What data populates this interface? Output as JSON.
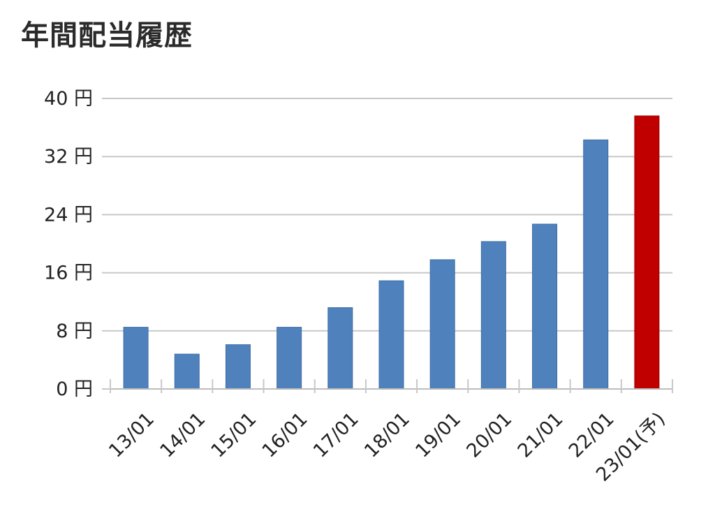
{
  "chart_data": {
    "type": "bar",
    "title": "年間配当履歴",
    "categories": [
      "13/01",
      "14/01",
      "15/01",
      "16/01",
      "17/01",
      "18/01",
      "19/01",
      "20/01",
      "21/01",
      "22/01",
      "23/01(予)"
    ],
    "series": [
      {
        "values": [
          8.5,
          4.8,
          6.1,
          8.5,
          11.2,
          14.9,
          17.8,
          20.3,
          22.7,
          34.3,
          37.6
        ]
      }
    ],
    "bar_colors": [
      "#4f81bd",
      "#4f81bd",
      "#4f81bd",
      "#4f81bd",
      "#4f81bd",
      "#4f81bd",
      "#4f81bd",
      "#4f81bd",
      "#4f81bd",
      "#4f81bd",
      "#c00000"
    ],
    "yticks": [
      0,
      8,
      16,
      24,
      32,
      40
    ],
    "ytick_labels": [
      "0 円",
      "8 円",
      "16 円",
      "24 円",
      "32 円",
      "40 円"
    ],
    "ylim": [
      0,
      40
    ],
    "grid": true,
    "legend": "none"
  }
}
